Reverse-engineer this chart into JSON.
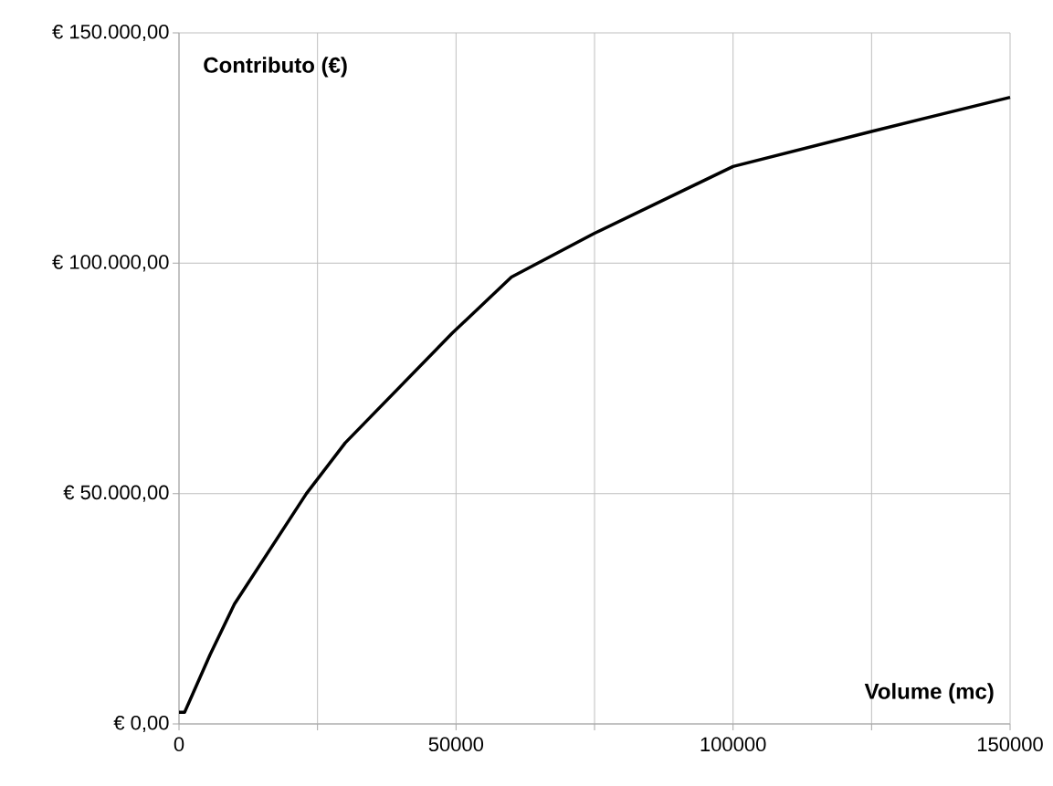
{
  "chart_data": {
    "type": "line",
    "xlabel": "Volume (mc)",
    "ylabel": "Contributo (€)",
    "x": [
      0,
      1000,
      5600,
      10000,
      23000,
      30000,
      49300,
      60000,
      75000,
      100000,
      125000,
      150000
    ],
    "series": [
      {
        "color": "#000000",
        "values": [
          2500,
          2500,
          15000,
          26000,
          50000,
          61000,
          84800,
          97000,
          106500,
          121000,
          128600,
          136000
        ]
      }
    ],
    "xlim": [
      0,
      150000
    ],
    "ylim": [
      0,
      150000
    ],
    "xticks": [
      0,
      {
        "value": 25000,
        "label": null
      },
      50000,
      {
        "value": 75000,
        "label": null
      },
      100000,
      {
        "value": 125000,
        "label": null
      },
      150000
    ],
    "yticks": [
      {
        "value": 0,
        "label": "€ 0,00"
      },
      {
        "value": 50000,
        "label": "€ 50.000,00"
      },
      {
        "value": 100000,
        "label": "€ 100.000,00"
      },
      {
        "value": 150000,
        "label": "€ 150.000,00"
      }
    ],
    "grid": true,
    "marker": "none",
    "line_style": "solid"
  }
}
